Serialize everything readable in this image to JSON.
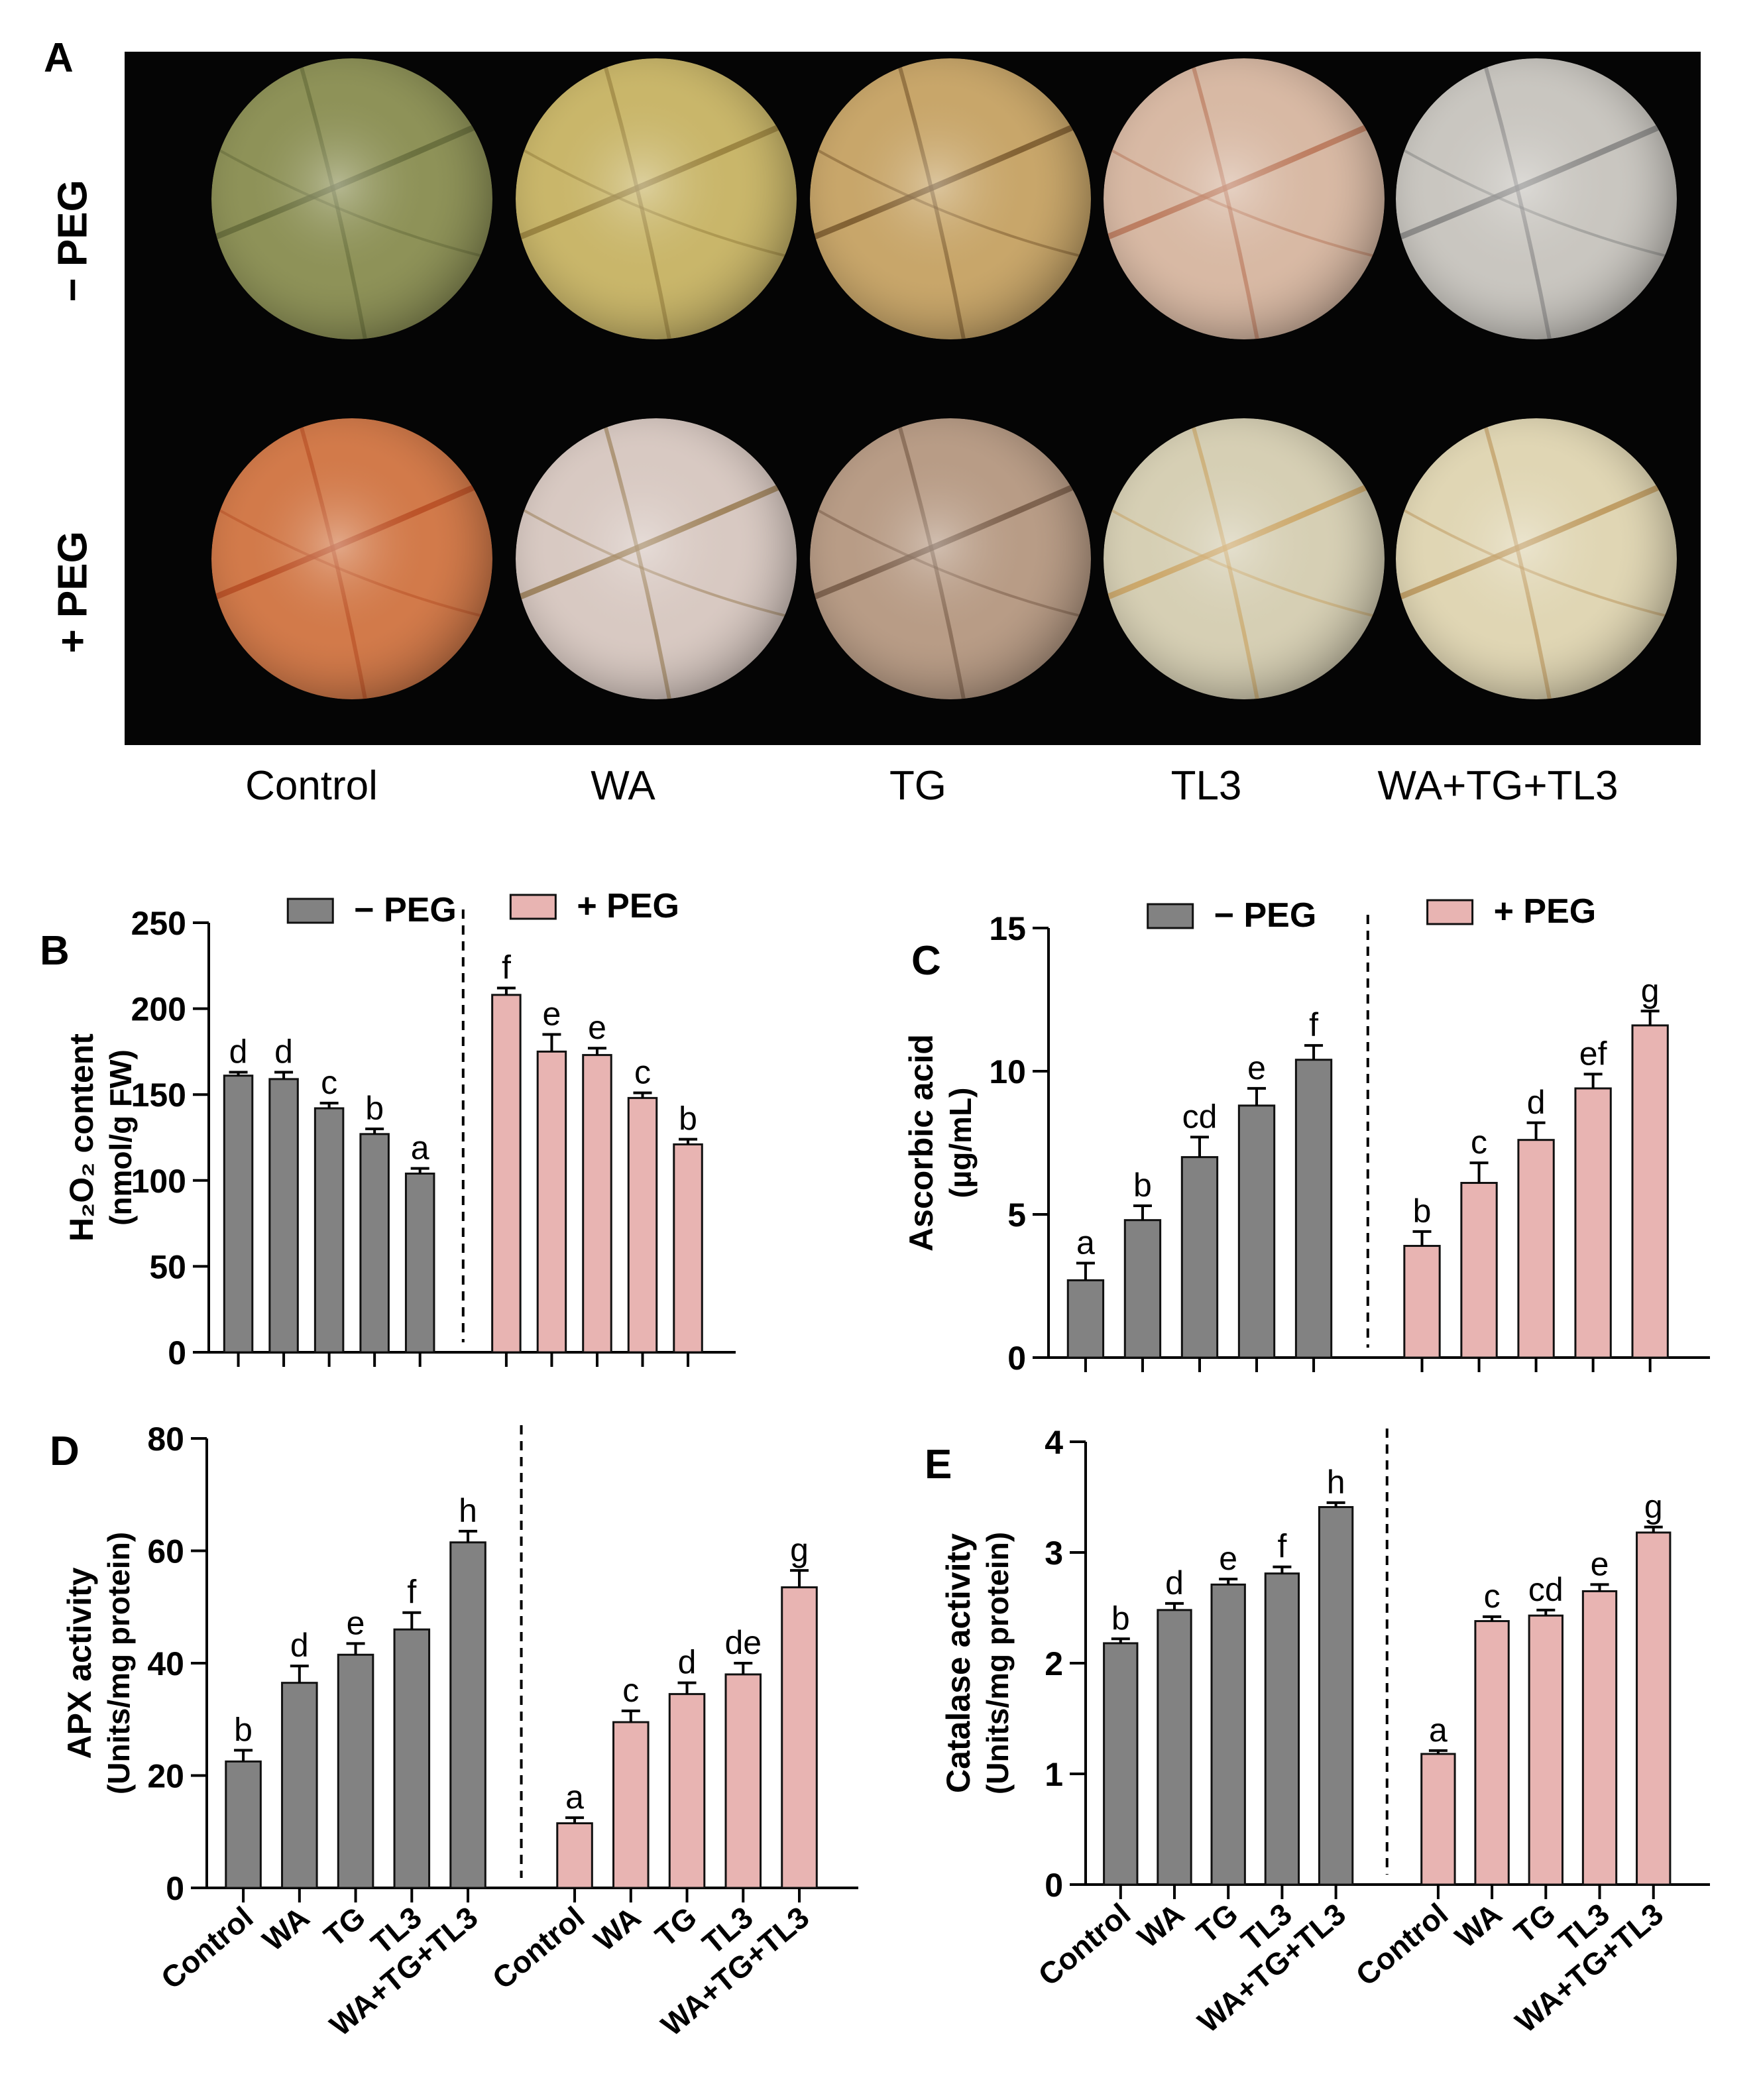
{
  "panelA": {
    "letter": "A",
    "rows": [
      "− PEG",
      "+ PEG"
    ],
    "columns": [
      "Control",
      "WA",
      "TG",
      "TL3",
      "WA+TG+TL3"
    ],
    "dish_colors": {
      "minus": [
        "#8e9258",
        "#c9b66a",
        "#c8a66a",
        "#d8b9a4",
        "#c9c6c0"
      ],
      "plus": [
        "#d27a4a",
        "#d8c9c2",
        "#b89c86",
        "#d6cfb4",
        "#e0d6b4"
      ]
    },
    "vein_colors": {
      "minus": [
        "#5d6435",
        "#8c7434",
        "#6b4a22",
        "#b46a4a",
        "#777"
      ],
      "plus": [
        "#b3461e",
        "#8d6c3c",
        "#6a4e3a",
        "#c89a50",
        "#b68a48"
      ]
    }
  },
  "colors": {
    "minus": "#828282",
    "plus": "#e8b4b2",
    "edge": "#111111"
  },
  "chart_data": [
    {
      "id": "B",
      "letter": "B",
      "type": "bar",
      "ylabel": "H₂O₂ content",
      "ylabel_unit": "(nmol/g FW)",
      "ylim": [
        0,
        250
      ],
      "yticks": [
        "0",
        "50",
        "100",
        "150",
        "200",
        "250"
      ],
      "categories": [
        "Control",
        "WA",
        "TG",
        "TL3",
        "WA+TG+TL3"
      ],
      "show_xlabels": false,
      "legend": {
        "minus": "− PEG",
        "plus": "+ PEG"
      },
      "series": [
        {
          "name": "− PEG",
          "values": [
            161,
            159,
            142,
            127,
            104
          ],
          "errors": [
            2,
            4,
            3,
            3,
            3
          ],
          "letters": [
            "d",
            "d",
            "c",
            "b",
            "a"
          ]
        },
        {
          "name": "+ PEG",
          "values": [
            208,
            175,
            173,
            148,
            121
          ],
          "errors": [
            4,
            10,
            4,
            3,
            3
          ],
          "letters": [
            "f",
            "e",
            "e",
            "c",
            "b"
          ]
        }
      ]
    },
    {
      "id": "C",
      "letter": "C",
      "type": "bar",
      "ylabel": "Ascorbic acid",
      "ylabel_unit": "(µg/mL)",
      "ylim": [
        0,
        15
      ],
      "yticks": [
        "0",
        "5",
        "10",
        "15"
      ],
      "categories": [
        "Control",
        "WA",
        "TG",
        "TL3",
        "WA+TG+TL3"
      ],
      "show_xlabels": false,
      "legend": {
        "minus": "− PEG",
        "plus": "+ PEG"
      },
      "series": [
        {
          "name": "− PEG",
          "values": [
            2.7,
            4.8,
            7.0,
            8.8,
            10.4
          ],
          "errors": [
            0.6,
            0.5,
            0.7,
            0.6,
            0.5
          ],
          "letters": [
            "a",
            "b",
            "cd",
            "e",
            "f"
          ]
        },
        {
          "name": "+ PEG",
          "values": [
            3.9,
            6.1,
            7.6,
            9.4,
            11.6
          ],
          "errors": [
            0.5,
            0.7,
            0.6,
            0.5,
            0.5
          ],
          "letters": [
            "b",
            "c",
            "d",
            "ef",
            "g"
          ]
        }
      ]
    },
    {
      "id": "D",
      "letter": "D",
      "type": "bar",
      "ylabel": "APX activity",
      "ylabel_unit": "(Units/mg protein)",
      "ylim": [
        0,
        80
      ],
      "yticks": [
        "0",
        "20",
        "40",
        "60",
        "80"
      ],
      "categories": [
        "Control",
        "WA",
        "TG",
        "TL3",
        "WA+TG+TL3"
      ],
      "show_xlabels": true,
      "series": [
        {
          "name": "− PEG",
          "values": [
            22.5,
            36.5,
            41.5,
            46,
            61.5
          ],
          "errors": [
            2,
            3,
            2,
            3,
            2
          ],
          "letters": [
            "b",
            "d",
            "e",
            "f",
            "h"
          ]
        },
        {
          "name": "+ PEG",
          "values": [
            11.5,
            29.5,
            34.5,
            38,
            53.5
          ],
          "errors": [
            1,
            2,
            2,
            2,
            3
          ],
          "letters": [
            "a",
            "c",
            "d",
            "de",
            "g"
          ]
        }
      ]
    },
    {
      "id": "E",
      "letter": "E",
      "type": "bar",
      "ylabel": "Catalase activity",
      "ylabel_unit": "(Units/mg protein)",
      "ylim": [
        0,
        4
      ],
      "yticks": [
        "0",
        "1",
        "2",
        "3",
        "4"
      ],
      "categories": [
        "Control",
        "WA",
        "TG",
        "TL3",
        "WA+TG+TL3"
      ],
      "show_xlabels": true,
      "series": [
        {
          "name": "− PEG",
          "values": [
            2.18,
            2.48,
            2.71,
            2.81,
            3.41
          ],
          "errors": [
            0.04,
            0.06,
            0.05,
            0.06,
            0.04
          ],
          "letters": [
            "b",
            "d",
            "e",
            "f",
            "h"
          ]
        },
        {
          "name": "+ PEG",
          "values": [
            1.18,
            2.38,
            2.43,
            2.65,
            3.18
          ],
          "errors": [
            0.03,
            0.04,
            0.05,
            0.06,
            0.05
          ],
          "letters": [
            "a",
            "c",
            "cd",
            "e",
            "g"
          ]
        }
      ]
    }
  ]
}
